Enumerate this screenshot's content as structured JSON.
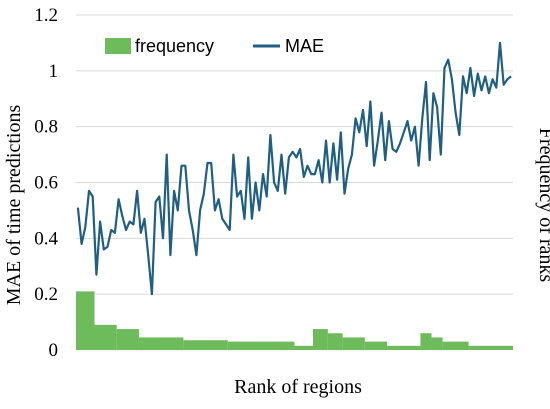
{
  "chart_data": {
    "type": "bar+line",
    "xlabel": "Rank of regions",
    "ylabel_left": "MAE of time predictions",
    "ylabel_right": "Frequency of ranks",
    "ylim": [
      0,
      1.2
    ],
    "yticks": [
      "0",
      "0.2",
      "0.4",
      "0.6",
      "0.8",
      "1",
      "1.2"
    ],
    "grid": "horizontal",
    "legend": {
      "placement": "top-left",
      "entries": [
        "frequency",
        "MAE"
      ]
    },
    "colors": {
      "frequency": "#6dbb5a",
      "MAE": "#1f5f85",
      "grid": "#d9d9d9"
    },
    "x_points": 118,
    "mae_values": [
      0.51,
      0.38,
      0.44,
      0.57,
      0.55,
      0.27,
      0.46,
      0.36,
      0.37,
      0.43,
      0.42,
      0.54,
      0.48,
      0.43,
      0.46,
      0.45,
      0.57,
      0.42,
      0.47,
      0.34,
      0.2,
      0.53,
      0.55,
      0.4,
      0.7,
      0.34,
      0.57,
      0.5,
      0.66,
      0.66,
      0.5,
      0.43,
      0.34,
      0.5,
      0.56,
      0.67,
      0.67,
      0.5,
      0.54,
      0.47,
      0.45,
      0.43,
      0.7,
      0.55,
      0.57,
      0.47,
      0.69,
      0.47,
      0.6,
      0.5,
      0.63,
      0.55,
      0.77,
      0.6,
      0.57,
      0.7,
      0.56,
      0.69,
      0.71,
      0.69,
      0.72,
      0.62,
      0.66,
      0.63,
      0.63,
      0.68,
      0.6,
      0.75,
      0.6,
      0.74,
      0.61,
      0.78,
      0.56,
      0.65,
      0.7,
      0.83,
      0.78,
      0.86,
      0.73,
      0.89,
      0.66,
      0.75,
      0.85,
      0.68,
      0.82,
      0.72,
      0.71,
      0.74,
      0.78,
      0.82,
      0.75,
      0.8,
      0.66,
      0.83,
      0.96,
      0.68,
      0.92,
      0.87,
      0.7,
      1.01,
      1.04,
      0.97,
      0.85,
      0.77,
      0.98,
      0.92,
      1.01,
      0.91,
      0.99,
      0.93,
      0.98,
      0.92,
      0.97,
      0.94,
      1.1,
      0.95,
      0.97,
      0.98
    ],
    "frequency_bars": [
      {
        "from": 1,
        "to": 6,
        "value": 0.21
      },
      {
        "from": 6,
        "to": 12,
        "value": 0.09
      },
      {
        "from": 12,
        "to": 18,
        "value": 0.075
      },
      {
        "from": 18,
        "to": 30,
        "value": 0.045
      },
      {
        "from": 30,
        "to": 42,
        "value": 0.035
      },
      {
        "from": 42,
        "to": 60,
        "value": 0.03
      },
      {
        "from": 60,
        "to": 65,
        "value": 0.015
      },
      {
        "from": 65,
        "to": 69,
        "value": 0.075
      },
      {
        "from": 69,
        "to": 73,
        "value": 0.06
      },
      {
        "from": 73,
        "to": 79,
        "value": 0.045
      },
      {
        "from": 79,
        "to": 85,
        "value": 0.03
      },
      {
        "from": 85,
        "to": 94,
        "value": 0.015
      },
      {
        "from": 94,
        "to": 97,
        "value": 0.06
      },
      {
        "from": 97,
        "to": 100,
        "value": 0.045
      },
      {
        "from": 100,
        "to": 107,
        "value": 0.03
      },
      {
        "from": 107,
        "to": 119,
        "value": 0.015
      }
    ]
  }
}
